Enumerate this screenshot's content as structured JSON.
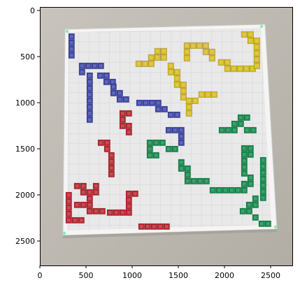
{
  "figure": {
    "x_ticks": [
      "0",
      "500",
      "1000",
      "1500",
      "2000",
      "2500"
    ],
    "y_ticks": [
      "0",
      "500",
      "1000",
      "1500",
      "2000",
      "2500"
    ],
    "colors": {
      "background": "#bdb8b1",
      "board_frame": "#f5f5f4",
      "board_surface": "#e9e9ea",
      "grid_line": "#d3d3d6",
      "blue": "#3e46a6",
      "yellow": "#d7bb26",
      "red": "#b8262f",
      "green": "#158a4e",
      "corner_marker": "#7cf2b6"
    }
  }
}
